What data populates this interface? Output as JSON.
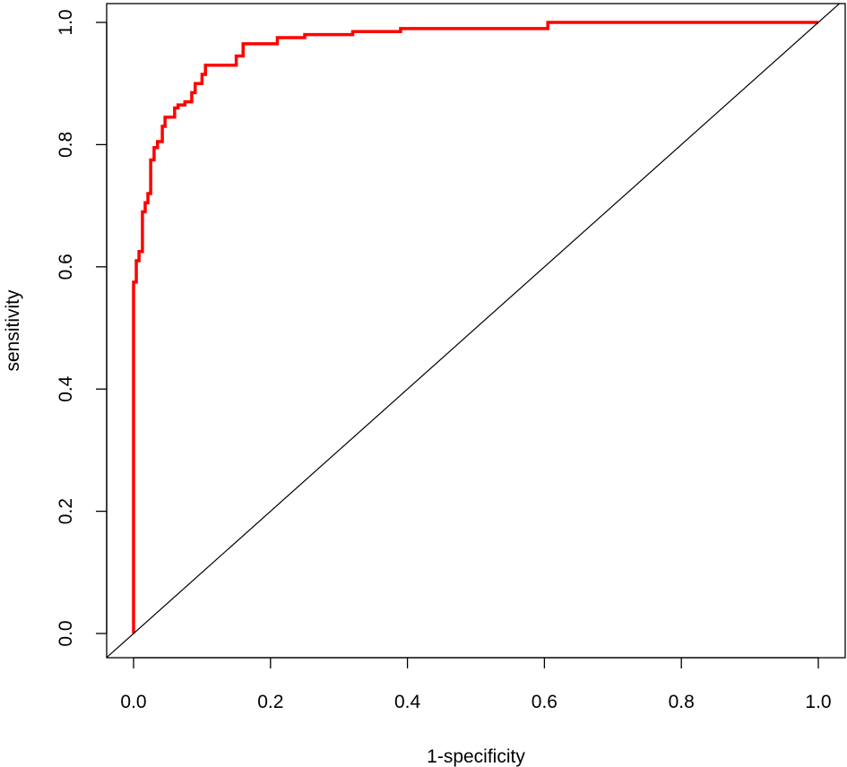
{
  "chart_data": {
    "type": "line",
    "title": "",
    "xlabel": "1-specificity",
    "ylabel": "sensitivity",
    "xlim": [
      0,
      1
    ],
    "ylim": [
      0,
      1
    ],
    "x_ticks": [
      0.0,
      0.2,
      0.4,
      0.6,
      0.8,
      1.0
    ],
    "x_tick_labels": [
      "0.0",
      "0.2",
      "0.4",
      "0.6",
      "0.8",
      "1.0"
    ],
    "y_ticks": [
      0.0,
      0.2,
      0.4,
      0.6,
      0.8,
      1.0
    ],
    "y_tick_labels": [
      "0.0",
      "0.2",
      "0.4",
      "0.6",
      "0.8",
      "1.0"
    ],
    "grid": false,
    "legend": "none",
    "series": [
      {
        "style": "step",
        "color": "#ff0000",
        "x": [
          0.0,
          0.0,
          0.004,
          0.004,
          0.008,
          0.008,
          0.013,
          0.013,
          0.017,
          0.017,
          0.021,
          0.021,
          0.025,
          0.025,
          0.03,
          0.03,
          0.035,
          0.035,
          0.042,
          0.042,
          0.046,
          0.046,
          0.06,
          0.06,
          0.065,
          0.065,
          0.075,
          0.075,
          0.085,
          0.085,
          0.09,
          0.09,
          0.1,
          0.1,
          0.105,
          0.105,
          0.15,
          0.15,
          0.16,
          0.16,
          0.21,
          0.21,
          0.25,
          0.25,
          0.32,
          0.32,
          0.39,
          0.39,
          0.605,
          0.605,
          1.0
        ],
        "y": [
          0.0,
          0.575,
          0.575,
          0.61,
          0.61,
          0.625,
          0.625,
          0.69,
          0.69,
          0.705,
          0.705,
          0.72,
          0.72,
          0.775,
          0.775,
          0.795,
          0.795,
          0.805,
          0.805,
          0.83,
          0.83,
          0.845,
          0.845,
          0.86,
          0.86,
          0.865,
          0.865,
          0.87,
          0.87,
          0.885,
          0.885,
          0.9,
          0.9,
          0.915,
          0.915,
          0.93,
          0.93,
          0.945,
          0.945,
          0.965,
          0.965,
          0.975,
          0.975,
          0.98,
          0.98,
          0.985,
          0.985,
          0.99,
          0.99,
          1.0,
          1.0
        ]
      },
      {
        "style": "reference",
        "color": "#000000",
        "x": [
          -0.04,
          1.04
        ],
        "y": [
          -0.04,
          1.04
        ]
      }
    ]
  }
}
